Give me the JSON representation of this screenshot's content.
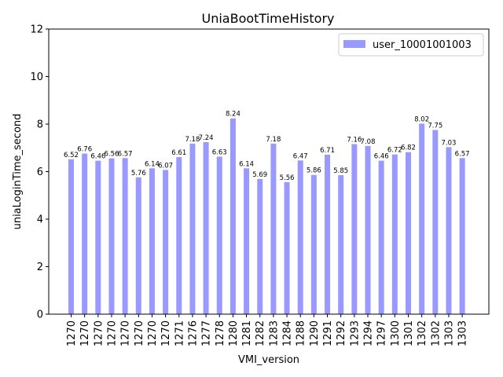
{
  "chart_data": {
    "type": "bar",
    "title": "UniaBootTimeHistory",
    "xlabel": "VMI_version",
    "ylabel": "uniaLoginTime_second",
    "ylim": [
      0,
      12
    ],
    "yticks": [
      0,
      2,
      4,
      6,
      8,
      10,
      12
    ],
    "grid": false,
    "legend_position": "top-right",
    "categories": [
      "1270",
      "1270",
      "1270",
      "1270",
      "1270",
      "1270",
      "1270",
      "1270",
      "1271",
      "1276",
      "1277",
      "1278",
      "1280",
      "1281",
      "1282",
      "1283",
      "1284",
      "1288",
      "1290",
      "1291",
      "1292",
      "1293",
      "1294",
      "1297",
      "1300",
      "1301",
      "1302",
      "1302",
      "1303",
      "1303"
    ],
    "series": [
      {
        "name": "user_10001001003",
        "color": "#9999ff",
        "values": [
          6.52,
          6.76,
          6.46,
          6.56,
          6.57,
          5.76,
          6.14,
          6.07,
          6.61,
          7.18,
          7.24,
          6.63,
          8.24,
          6.14,
          5.69,
          7.18,
          5.56,
          6.47,
          5.86,
          6.71,
          5.85,
          7.16,
          7.08,
          6.46,
          6.72,
          6.82,
          8.02,
          7.75,
          7.03,
          6.57
        ],
        "labels": [
          "6.52",
          "6.76",
          "6.46",
          "6.56",
          "6.57",
          "5.76",
          "6.14",
          "6.07",
          "6.61",
          "7.18",
          "7.24",
          "6.63",
          "8.24",
          "6.14",
          "5.69",
          "7.18",
          "5.56",
          "6.47",
          "5.86",
          "6.71",
          "5.85",
          "7.16",
          "7.08",
          "6.46",
          "6.72",
          "6.82",
          "8.02",
          "7.75",
          "7.03",
          "6.57"
        ]
      }
    ]
  }
}
